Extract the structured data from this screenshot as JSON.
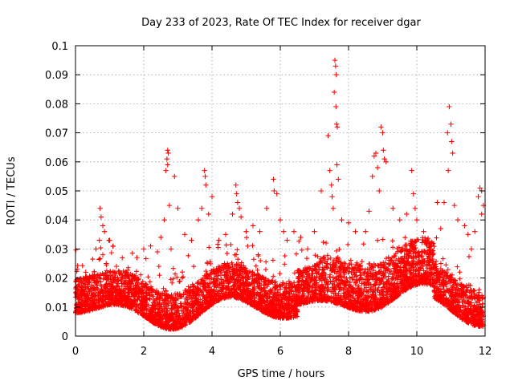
{
  "chart_data": {
    "type": "scatter",
    "title": "Day 233 of 2023, Rate Of TEC Index for receiver dgar",
    "xlabel": "GPS time / hours",
    "ylabel": "ROTI / TECUs",
    "xlim": [
      0,
      12
    ],
    "ylim": [
      0,
      0.1
    ],
    "x_ticks": [
      "0",
      "2",
      "4",
      "6",
      "8",
      "10",
      "12"
    ],
    "y_ticks": [
      "0",
      "0.01",
      "0.02",
      "0.03",
      "0.04",
      "0.05",
      "0.06",
      "0.07",
      "0.08",
      "0.09",
      "0.1"
    ],
    "grid": true,
    "marker": "+",
    "colors": {
      "points": "#ff0000",
      "grid": "#a0a0a0",
      "axes": "#000000"
    },
    "series": [
      {
        "points": [
          [
            0.05,
            0.023
          ],
          [
            0.1,
            0.019
          ],
          [
            0.3,
            0.022
          ],
          [
            0.5,
            0.021
          ],
          [
            0.6,
            0.03
          ],
          [
            0.7,
            0.033
          ],
          [
            0.72,
            0.044
          ],
          [
            0.75,
            0.041
          ],
          [
            0.8,
            0.038
          ],
          [
            0.85,
            0.036
          ],
          [
            0.8,
            0.028
          ],
          [
            0.9,
            0.025
          ],
          [
            1.0,
            0.033
          ],
          [
            1.1,
            0.031
          ],
          [
            1.2,
            0.024
          ],
          [
            1.5,
            0.022
          ],
          [
            1.8,
            0.027
          ],
          [
            2.0,
            0.03
          ],
          [
            2.2,
            0.031
          ],
          [
            2.4,
            0.029
          ],
          [
            2.5,
            0.034
          ],
          [
            2.6,
            0.04
          ],
          [
            2.65,
            0.057
          ],
          [
            2.7,
            0.059
          ],
          [
            2.7,
            0.064
          ],
          [
            2.72,
            0.063
          ],
          [
            2.68,
            0.061
          ],
          [
            2.75,
            0.045
          ],
          [
            2.8,
            0.03
          ],
          [
            2.9,
            0.055
          ],
          [
            3.0,
            0.044
          ],
          [
            3.2,
            0.035
          ],
          [
            3.4,
            0.033
          ],
          [
            3.6,
            0.04
          ],
          [
            3.7,
            0.044
          ],
          [
            3.8,
            0.055
          ],
          [
            3.78,
            0.057
          ],
          [
            3.82,
            0.052
          ],
          [
            3.9,
            0.042
          ],
          [
            4.0,
            0.048
          ],
          [
            4.2,
            0.033
          ],
          [
            4.4,
            0.035
          ],
          [
            4.6,
            0.042
          ],
          [
            4.7,
            0.052
          ],
          [
            4.72,
            0.049
          ],
          [
            4.75,
            0.046
          ],
          [
            4.8,
            0.044
          ],
          [
            4.85,
            0.041
          ],
          [
            5.0,
            0.036
          ],
          [
            5.2,
            0.038
          ],
          [
            5.4,
            0.036
          ],
          [
            5.6,
            0.044
          ],
          [
            5.8,
            0.054
          ],
          [
            5.82,
            0.05
          ],
          [
            5.9,
            0.049
          ],
          [
            6.0,
            0.04
          ],
          [
            6.1,
            0.036
          ],
          [
            6.2,
            0.033
          ],
          [
            6.4,
            0.036
          ],
          [
            6.6,
            0.034
          ],
          [
            6.8,
            0.03
          ],
          [
            7.0,
            0.036
          ],
          [
            7.2,
            0.05
          ],
          [
            7.4,
            0.069
          ],
          [
            7.45,
            0.057
          ],
          [
            7.5,
            0.052
          ],
          [
            7.52,
            0.048
          ],
          [
            7.55,
            0.044
          ],
          [
            7.58,
            0.084
          ],
          [
            7.6,
            0.095
          ],
          [
            7.62,
            0.093
          ],
          [
            7.64,
            0.09
          ],
          [
            7.63,
            0.079
          ],
          [
            7.65,
            0.073
          ],
          [
            7.67,
            0.072
          ],
          [
            7.66,
            0.059
          ],
          [
            7.7,
            0.054
          ],
          [
            7.8,
            0.04
          ],
          [
            8.0,
            0.039
          ],
          [
            8.2,
            0.036
          ],
          [
            8.5,
            0.036
          ],
          [
            8.6,
            0.043
          ],
          [
            8.7,
            0.055
          ],
          [
            8.75,
            0.062
          ],
          [
            8.8,
            0.063
          ],
          [
            8.85,
            0.058
          ],
          [
            8.9,
            0.05
          ],
          [
            8.95,
            0.072
          ],
          [
            9.0,
            0.07
          ],
          [
            9.02,
            0.064
          ],
          [
            9.05,
            0.061
          ],
          [
            9.1,
            0.06
          ],
          [
            9.3,
            0.044
          ],
          [
            9.5,
            0.04
          ],
          [
            9.7,
            0.042
          ],
          [
            9.85,
            0.057
          ],
          [
            9.9,
            0.049
          ],
          [
            9.95,
            0.044
          ],
          [
            10.0,
            0.04
          ],
          [
            10.2,
            0.036
          ],
          [
            10.4,
            0.03
          ],
          [
            10.6,
            0.046
          ],
          [
            10.7,
            0.037
          ],
          [
            10.8,
            0.046
          ],
          [
            10.9,
            0.07
          ],
          [
            10.95,
            0.079
          ],
          [
            11.0,
            0.073
          ],
          [
            11.02,
            0.067
          ],
          [
            11.05,
            0.063
          ],
          [
            10.92,
            0.057
          ],
          [
            11.1,
            0.045
          ],
          [
            11.2,
            0.04
          ],
          [
            11.4,
            0.038
          ],
          [
            11.5,
            0.035
          ],
          [
            11.6,
            0.03
          ],
          [
            11.7,
            0.036
          ],
          [
            11.8,
            0.048
          ],
          [
            11.85,
            0.051
          ],
          [
            11.9,
            0.05
          ],
          [
            11.95,
            0.045
          ],
          [
            11.9,
            0.042
          ]
        ]
      }
    ]
  }
}
